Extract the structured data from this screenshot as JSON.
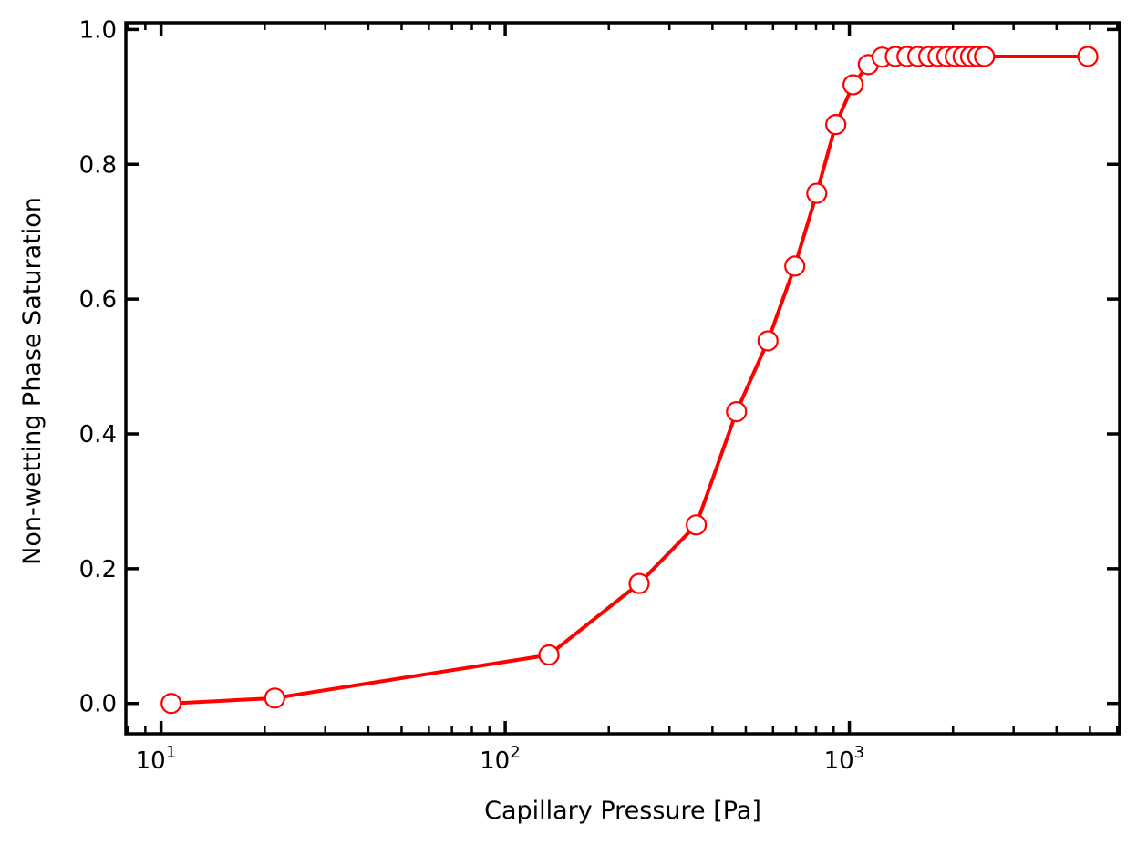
{
  "chart_data": {
    "type": "line",
    "xlabel": "Capillary Pressure [Pa]",
    "ylabel": "Non-wetting Phase Saturation",
    "xscale": "log",
    "xlim": [
      7.9,
      6100
    ],
    "ylim": [
      -0.045,
      1.01
    ],
    "x_ticks": [
      {
        "value": 10,
        "base": "10",
        "exp": "1"
      },
      {
        "value": 100,
        "base": "10",
        "exp": "2"
      },
      {
        "value": 1000,
        "base": "10",
        "exp": "3"
      }
    ],
    "y_ticks": [
      {
        "value": 0.0,
        "label": "0.0"
      },
      {
        "value": 0.2,
        "label": "0.2"
      },
      {
        "value": 0.4,
        "label": "0.4"
      },
      {
        "value": 0.6,
        "label": "0.6"
      },
      {
        "value": 0.8,
        "label": "0.8"
      },
      {
        "value": 1.0,
        "label": "1.0"
      }
    ],
    "grid": false,
    "series": [
      {
        "color": "#ff0000",
        "marker": "open-circle",
        "x": [
          10.7,
          21.4,
          134,
          245,
          359,
          470,
          580,
          694,
          804,
          913,
          1025,
          1135,
          1245,
          1360,
          1470,
          1580,
          1700,
          1810,
          1920,
          2030,
          2140,
          2250,
          2360,
          2470,
          4930
        ],
        "y": [
          0.0,
          0.008,
          0.072,
          0.178,
          0.265,
          0.433,
          0.538,
          0.649,
          0.757,
          0.859,
          0.918,
          0.948,
          0.959,
          0.96,
          0.96,
          0.96,
          0.96,
          0.96,
          0.96,
          0.96,
          0.96,
          0.96,
          0.96,
          0.96,
          0.96
        ]
      }
    ]
  }
}
